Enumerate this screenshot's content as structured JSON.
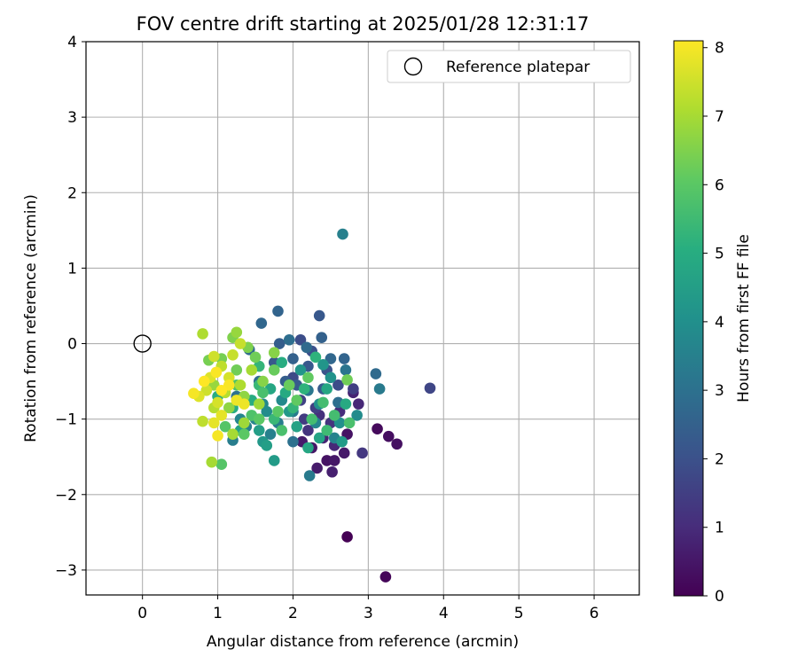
{
  "chart_data": {
    "type": "scatter",
    "title": "FOV centre drift starting at 2025/01/28 12:31:17",
    "xlabel": "Angular distance from reference (arcmin)",
    "ylabel": "Rotation from reference (arcmin)",
    "xlim": [
      -0.75,
      6.6
    ],
    "ylim": [
      -3.33,
      4.0
    ],
    "xticks": [
      0,
      1,
      2,
      3,
      4,
      5,
      6
    ],
    "yticks": [
      -3,
      -2,
      -1,
      0,
      1,
      2,
      3,
      4
    ],
    "grid": true,
    "legend": {
      "position": "top-right",
      "entries": [
        "Reference platepar"
      ]
    },
    "reference_point": {
      "x": 0,
      "y": 0
    },
    "colorbar": {
      "label": "Hours from first FF file",
      "range": [
        0,
        8.1
      ],
      "ticks": [
        0,
        1,
        2,
        3,
        4,
        5,
        6,
        7,
        8
      ],
      "colormap": "viridis"
    },
    "points": [
      [
        2.72,
        -2.56,
        0.0
      ],
      [
        3.23,
        -3.09,
        0.1
      ],
      [
        3.12,
        -1.13,
        0.2
      ],
      [
        3.27,
        -1.23,
        0.3
      ],
      [
        3.38,
        -1.33,
        0.35
      ],
      [
        2.45,
        -1.55,
        0.4
      ],
      [
        2.55,
        -1.55,
        0.5
      ],
      [
        2.68,
        -1.45,
        0.55
      ],
      [
        2.32,
        -1.65,
        0.6
      ],
      [
        2.52,
        -1.7,
        0.7
      ],
      [
        2.12,
        -1.3,
        0.6
      ],
      [
        2.25,
        -1.38,
        0.5
      ],
      [
        2.4,
        -1.25,
        0.8
      ],
      [
        2.55,
        -1.35,
        0.9
      ],
      [
        2.72,
        -1.2,
        0.4
      ],
      [
        2.87,
        -0.8,
        0.9
      ],
      [
        2.62,
        -0.9,
        1.0
      ],
      [
        2.8,
        -0.65,
        0.8
      ],
      [
        2.92,
        -1.45,
        1.3
      ],
      [
        2.5,
        -1.05,
        1.2
      ],
      [
        2.35,
        -0.95,
        1.1
      ],
      [
        2.2,
        -1.15,
        1.2
      ],
      [
        3.82,
        -0.59,
        1.7
      ],
      [
        2.35,
        0.37,
        2.2
      ],
      [
        2.0,
        -0.45,
        1.8
      ],
      [
        2.1,
        -0.75,
        1.6
      ],
      [
        2.3,
        -0.85,
        1.5
      ],
      [
        2.15,
        -1.0,
        1.4
      ],
      [
        2.6,
        -0.55,
        1.9
      ],
      [
        2.1,
        0.05,
        1.9
      ],
      [
        2.25,
        -0.1,
        2.0
      ],
      [
        2.45,
        -0.35,
        2.1
      ],
      [
        2.8,
        -0.6,
        1.5
      ],
      [
        2.2,
        -0.3,
        2.2
      ],
      [
        2.4,
        -0.6,
        2.3
      ],
      [
        1.9,
        -0.5,
        2.4
      ],
      [
        1.75,
        -0.25,
        2.2
      ],
      [
        2.05,
        -0.55,
        2.3
      ],
      [
        2.68,
        -0.2,
        2.6
      ],
      [
        2.38,
        0.08,
        2.5
      ],
      [
        1.8,
        0.43,
        2.6
      ],
      [
        1.58,
        0.27,
        2.7
      ],
      [
        1.82,
        0.0,
        2.4
      ],
      [
        2.0,
        -0.2,
        2.5
      ],
      [
        1.42,
        -0.08,
        2.8
      ],
      [
        1.55,
        -0.5,
        2.9
      ],
      [
        1.25,
        -0.7,
        3.0
      ],
      [
        2.5,
        -0.2,
        2.7
      ],
      [
        2.18,
        -0.05,
        2.8
      ],
      [
        1.95,
        0.05,
        2.9
      ],
      [
        3.15,
        -0.6,
        3.3
      ],
      [
        3.1,
        -0.4,
        2.8
      ],
      [
        2.7,
        -0.35,
        3.1
      ],
      [
        2.6,
        -0.78,
        2.9
      ],
      [
        2.2,
        -0.62,
        3.2
      ],
      [
        2.0,
        -0.9,
        3.3
      ],
      [
        1.8,
        -1.05,
        3.4
      ],
      [
        1.7,
        -1.2,
        3.5
      ],
      [
        1.2,
        -1.28,
        3.4
      ],
      [
        1.38,
        -1.1,
        3.5
      ],
      [
        2.0,
        -1.3,
        3.0
      ],
      [
        2.22,
        -1.75,
        3.3
      ],
      [
        2.66,
        1.45,
        3.5
      ],
      [
        2.55,
        -1.25,
        3.6
      ],
      [
        2.3,
        -1.05,
        3.7
      ],
      [
        1.85,
        -0.75,
        3.8
      ],
      [
        1.65,
        -0.9,
        3.9
      ],
      [
        1.5,
        -1.0,
        3.6
      ],
      [
        1.3,
        -1.0,
        3.7
      ],
      [
        1.6,
        -0.8,
        3.8
      ],
      [
        2.35,
        -0.8,
        4.0
      ],
      [
        2.62,
        -1.05,
        4.0
      ],
      [
        2.85,
        -0.95,
        3.9
      ],
      [
        2.5,
        -0.45,
        4.1
      ],
      [
        2.4,
        -0.28,
        4.2
      ],
      [
        2.1,
        -0.35,
        4.2
      ],
      [
        1.95,
        -0.9,
        4.3
      ],
      [
        1.6,
        -1.3,
        4.3
      ],
      [
        1.75,
        -1.55,
        4.4
      ],
      [
        1.65,
        -1.35,
        4.5
      ],
      [
        1.55,
        -1.15,
        4.5
      ],
      [
        1.3,
        -1.15,
        4.6
      ],
      [
        2.05,
        -1.1,
        4.6
      ],
      [
        2.35,
        -1.25,
        4.7
      ],
      [
        2.65,
        -1.3,
        4.4
      ],
      [
        2.2,
        -1.38,
        4.8
      ],
      [
        2.45,
        -0.6,
        4.8
      ],
      [
        2.7,
        -0.8,
        4.9
      ],
      [
        1.9,
        -0.65,
        4.9
      ],
      [
        1.7,
        -0.6,
        4.8
      ],
      [
        1.45,
        -0.75,
        5.0
      ],
      [
        1.2,
        -0.85,
        5.0
      ],
      [
        1.0,
        -0.7,
        5.0
      ],
      [
        1.85,
        -0.25,
        5.0
      ],
      [
        2.3,
        -0.18,
        5.2
      ],
      [
        2.15,
        -0.6,
        5.2
      ],
      [
        1.55,
        -0.3,
        5.3
      ],
      [
        2.0,
        -0.85,
        5.3
      ],
      [
        1.75,
        -1.0,
        5.4
      ],
      [
        1.55,
        -0.55,
        5.4
      ],
      [
        2.72,
        -0.48,
        6.3
      ],
      [
        2.55,
        -0.95,
        5.6
      ],
      [
        2.75,
        -1.05,
        5.7
      ],
      [
        2.45,
        -1.15,
        5.5
      ],
      [
        2.4,
        -0.78,
        5.6
      ],
      [
        2.25,
        -1.0,
        5.6
      ],
      [
        1.85,
        -1.15,
        5.7
      ],
      [
        1.6,
        -0.65,
        5.7
      ],
      [
        1.45,
        -0.95,
        5.8
      ],
      [
        1.25,
        -0.55,
        5.8
      ],
      [
        1.05,
        -1.6,
        5.9
      ],
      [
        1.1,
        -1.1,
        5.9
      ],
      [
        1.35,
        -1.2,
        6.0
      ],
      [
        1.55,
        -1.0,
        6.0
      ],
      [
        1.8,
        -0.9,
        6.0
      ],
      [
        2.05,
        -0.75,
        6.1
      ],
      [
        2.2,
        -0.45,
        6.1
      ],
      [
        1.95,
        -0.55,
        6.2
      ],
      [
        1.75,
        -0.35,
        6.2
      ],
      [
        1.5,
        -0.18,
        6.3
      ],
      [
        1.25,
        -0.35,
        6.3
      ],
      [
        1.05,
        -0.2,
        6.4
      ],
      [
        0.88,
        -0.22,
        6.4
      ],
      [
        1.2,
        0.08,
        6.5
      ],
      [
        1.4,
        -0.05,
        6.5
      ],
      [
        1.75,
        -0.12,
        6.6
      ],
      [
        1.6,
        -0.5,
        6.6
      ],
      [
        1.35,
        -0.7,
        6.7
      ],
      [
        1.15,
        -0.85,
        6.7
      ],
      [
        0.95,
        -0.55,
        6.8
      ],
      [
        1.25,
        0.15,
        6.8
      ],
      [
        1.55,
        -0.8,
        6.9
      ],
      [
        1.35,
        -1.05,
        6.9
      ],
      [
        1.2,
        -1.2,
        7.0
      ],
      [
        0.92,
        -1.57,
        7.0
      ],
      [
        0.8,
        0.13,
        7.1
      ],
      [
        1.45,
        -0.35,
        7.0
      ],
      [
        1.3,
        -0.55,
        7.1
      ],
      [
        1.1,
        -0.65,
        7.2
      ],
      [
        0.95,
        -0.85,
        7.2
      ],
      [
        0.8,
        -1.03,
        7.3
      ],
      [
        1.05,
        -0.3,
        7.3
      ],
      [
        1.3,
        0.0,
        7.4
      ],
      [
        1.2,
        -0.15,
        7.4
      ],
      [
        0.95,
        -0.17,
        7.5
      ],
      [
        0.85,
        -0.62,
        7.5
      ],
      [
        1.0,
        -0.78,
        7.6
      ],
      [
        1.15,
        -0.45,
        7.6
      ],
      [
        0.9,
        -0.45,
        7.7
      ],
      [
        0.75,
        -0.7,
        7.7
      ],
      [
        1.05,
        -0.95,
        7.8
      ],
      [
        0.95,
        -1.05,
        7.8
      ],
      [
        1.25,
        -0.75,
        7.9
      ],
      [
        1.35,
        -0.8,
        7.9
      ],
      [
        0.68,
        -0.66,
        8.0
      ],
      [
        1.0,
        -1.22,
        8.0
      ],
      [
        0.98,
        -0.38,
        8.05
      ],
      [
        1.15,
        -0.55,
        8.05
      ],
      [
        0.82,
        -0.5,
        8.1
      ],
      [
        1.05,
        -0.62,
        8.1
      ]
    ]
  }
}
